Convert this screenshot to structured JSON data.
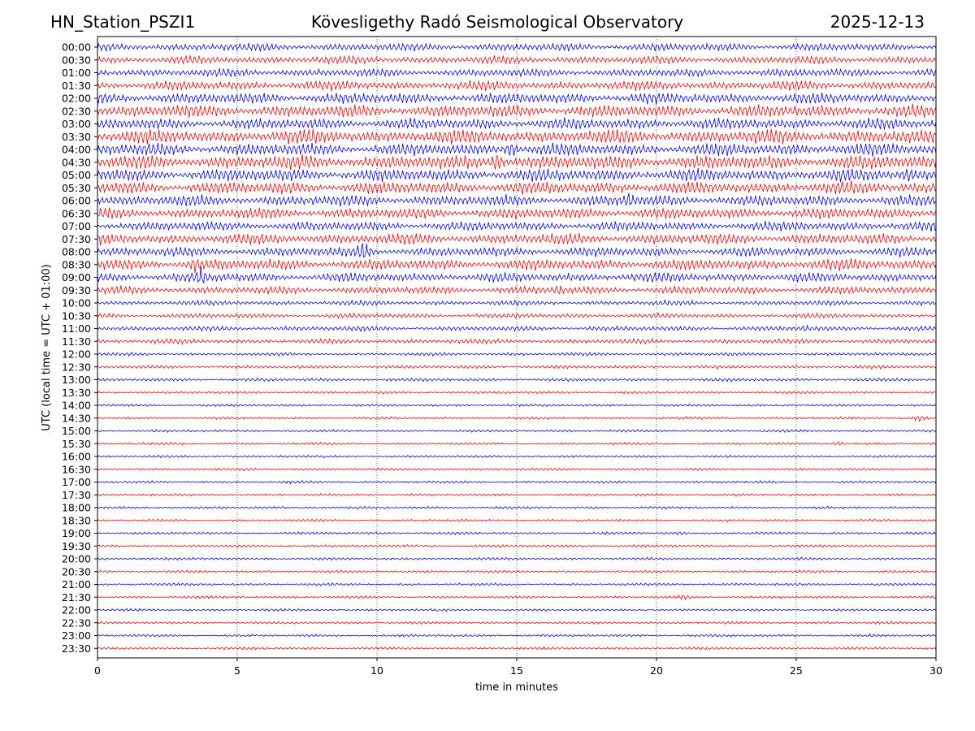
{
  "header": {
    "station": "HN_Station_PSZI1",
    "observatory": "Kövesligethy Radó Seismological Observatory",
    "date": "2025-12-13"
  },
  "chart_data": {
    "type": "line",
    "title": "Kövesligethy Radó Seismological Observatory",
    "xlabel": "time in minutes",
    "ylabel": "UTC (local time = UTC + 01:00)",
    "xlim": [
      0,
      30
    ],
    "x_ticks": [
      0,
      5,
      10,
      15,
      20,
      25,
      30
    ],
    "x_tick_labels": [
      "0",
      "5",
      "10",
      "15",
      "20",
      "25",
      "30"
    ],
    "grid": "vertical dotted lines at x ticks",
    "trace_colors": [
      "#0000ff",
      "#ff0000"
    ],
    "rows": [
      "00:00",
      "00:30",
      "01:00",
      "01:30",
      "02:00",
      "02:30",
      "03:00",
      "03:30",
      "04:00",
      "04:30",
      "05:00",
      "05:30",
      "06:00",
      "06:30",
      "07:00",
      "07:30",
      "08:00",
      "08:30",
      "09:00",
      "09:30",
      "10:00",
      "10:30",
      "11:00",
      "11:30",
      "12:00",
      "12:30",
      "13:00",
      "13:30",
      "14:00",
      "14:30",
      "15:00",
      "15:30",
      "16:00",
      "16:30",
      "17:00",
      "17:30",
      "18:00",
      "18:30",
      "19:00",
      "19:30",
      "20:00",
      "20:30",
      "21:00",
      "21:30",
      "22:00",
      "22:30",
      "23:00",
      "23:30"
    ],
    "amplitudes": [
      5,
      5,
      5,
      6,
      7,
      8,
      7,
      9,
      8,
      9,
      8,
      8,
      7,
      7,
      6,
      7,
      6,
      7,
      6,
      5,
      3,
      3,
      3,
      3,
      2,
      2,
      2,
      1.5,
      1.5,
      1.5,
      1.5,
      1.5,
      1.5,
      1.5,
      1.5,
      1.5,
      1.5,
      1.5,
      1.5,
      1.5,
      1.5,
      1.5,
      1.5,
      1.5,
      1.5,
      1.5,
      1.5,
      1.5
    ],
    "events": [
      {
        "row": "09:30",
        "x_minutes": 16.5,
        "amplitude": 8
      },
      {
        "row": "08:00",
        "x_minutes": 9.5,
        "amplitude": 16
      },
      {
        "row": "09:00",
        "x_minutes": 3.7,
        "amplitude": 14
      },
      {
        "row": "04:30",
        "x_minutes": 14.3,
        "amplitude": 14
      },
      {
        "row": "04:00",
        "x_minutes": 14.8,
        "amplitude": 12
      },
      {
        "row": "05:00",
        "x_minutes": 29.0,
        "amplitude": 12
      },
      {
        "row": "06:00",
        "x_minutes": 19.0,
        "amplitude": 12
      },
      {
        "row": "08:30",
        "x_minutes": 3.5,
        "amplitude": 12
      },
      {
        "row": "03:30",
        "x_minutes": 12.6,
        "amplitude": 11
      },
      {
        "row": "11:00",
        "x_minutes": 25.3,
        "amplitude": 5
      },
      {
        "row": "19:00",
        "x_minutes": 20.8,
        "amplitude": 3
      },
      {
        "row": "21:30",
        "x_minutes": 21.0,
        "amplitude": 4
      },
      {
        "row": "14:30",
        "x_minutes": 29.4,
        "amplitude": 5
      },
      {
        "row": "15:30",
        "x_minutes": 26.5,
        "amplitude": 3
      }
    ]
  }
}
